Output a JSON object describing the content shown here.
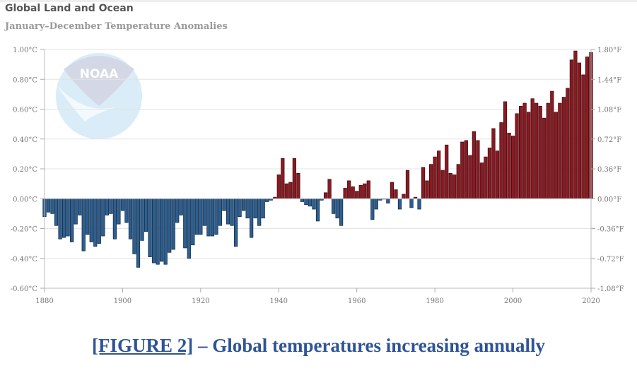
{
  "chart_data": {
    "type": "bar",
    "title": "Global Land and Ocean",
    "subtitle": "January–December Temperature Anomalies",
    "xlabel": "",
    "ylabel": "",
    "x_range": [
      1880,
      2020
    ],
    "ylim": [
      -0.6,
      1.0
    ],
    "y_ticks_left": [
      "1.00°C",
      "0.80°C",
      "0.60°C",
      "0.40°C",
      "0.20°C",
      "0.00°C",
      "-0.20°C",
      "-0.40°C",
      "-0.60°C"
    ],
    "y_ticks_right": [
      "1.80°F",
      "1.44°F",
      "1.08°F",
      "0.72°F",
      "0.36°F",
      "0.00°F",
      "-0.36°F",
      "-0.72°F",
      "-1.08°F"
    ],
    "x_ticks": [
      "1880",
      "1900",
      "1920",
      "1940",
      "1960",
      "1980",
      "2000",
      "2020"
    ],
    "grid": true,
    "colors": {
      "positive": "#8b1a22",
      "negative": "#2d5f8f"
    },
    "years_start": 1880,
    "values": [
      -0.12,
      -0.09,
      -0.1,
      -0.18,
      -0.27,
      -0.26,
      -0.25,
      -0.29,
      -0.17,
      -0.11,
      -0.35,
      -0.24,
      -0.29,
      -0.32,
      -0.3,
      -0.25,
      -0.11,
      -0.1,
      -0.27,
      -0.17,
      -0.08,
      -0.16,
      -0.27,
      -0.37,
      -0.46,
      -0.28,
      -0.22,
      -0.39,
      -0.43,
      -0.44,
      -0.42,
      -0.44,
      -0.36,
      -0.34,
      -0.16,
      -0.11,
      -0.33,
      -0.4,
      -0.31,
      -0.24,
      -0.24,
      -0.18,
      -0.25,
      -0.25,
      -0.24,
      -0.18,
      -0.08,
      -0.17,
      -0.18,
      -0.32,
      -0.12,
      -0.08,
      -0.13,
      -0.26,
      -0.13,
      -0.18,
      -0.13,
      -0.02,
      -0.01,
      0.01,
      0.16,
      0.27,
      0.1,
      0.11,
      0.27,
      0.17,
      -0.02,
      -0.04,
      -0.05,
      -0.07,
      -0.15,
      -0.01,
      0.04,
      0.13,
      -0.1,
      -0.13,
      -0.18,
      0.07,
      0.12,
      0.08,
      0.05,
      0.09,
      0.1,
      0.12,
      -0.14,
      -0.07,
      -0.01,
      0.0,
      -0.03,
      0.11,
      0.06,
      -0.07,
      0.03,
      0.19,
      -0.06,
      0.01,
      -0.07,
      0.21,
      0.12,
      0.23,
      0.28,
      0.32,
      0.19,
      0.36,
      0.17,
      0.16,
      0.23,
      0.38,
      0.39,
      0.29,
      0.45,
      0.39,
      0.24,
      0.28,
      0.34,
      0.47,
      0.32,
      0.51,
      0.65,
      0.44,
      0.42,
      0.57,
      0.62,
      0.64,
      0.58,
      0.67,
      0.64,
      0.62,
      0.54,
      0.64,
      0.72,
      0.58,
      0.64,
      0.68,
      0.74,
      0.93,
      0.99,
      0.91,
      0.83,
      0.95,
      0.98
    ]
  },
  "logo_text": "NOAA",
  "caption": {
    "link": "[FIGURE 2]",
    "text": " – Global temperatures increasing annually"
  }
}
